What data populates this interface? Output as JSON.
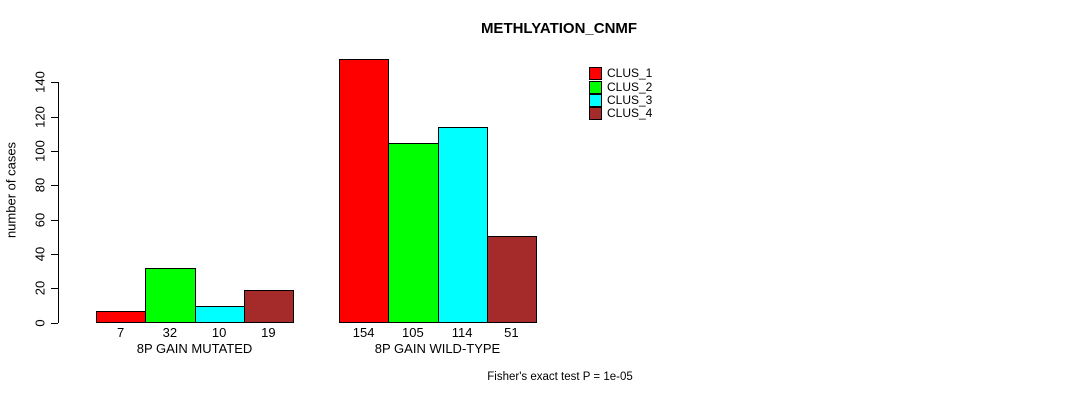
{
  "title": "METHLYATION_CNMF",
  "caption": "Fisher's exact test P = 1e-05",
  "chart_data": {
    "type": "bar",
    "title": "METHLYATION_CNMF",
    "xlabel": "",
    "ylabel": "number of cases",
    "categories": [
      "8P GAIN MUTATED",
      "8P GAIN WILD-TYPE"
    ],
    "series": [
      {
        "name": "CLUS_1",
        "color": "#ff0000",
        "values": [
          7,
          154
        ]
      },
      {
        "name": "CLUS_2",
        "color": "#00ff00",
        "values": [
          32,
          105
        ]
      },
      {
        "name": "CLUS_3",
        "color": "#00ffff",
        "values": [
          10,
          114
        ]
      },
      {
        "name": "CLUS_4",
        "color": "#a52a2a",
        "values": [
          19,
          51
        ]
      }
    ],
    "yticks": [
      0,
      20,
      40,
      60,
      80,
      100,
      120,
      140
    ],
    "ylim": [
      0,
      154
    ],
    "bar_value_labels": true,
    "grid": false,
    "legend_position": "top-right",
    "annotation": "Fisher's exact test P = 1e-05"
  }
}
